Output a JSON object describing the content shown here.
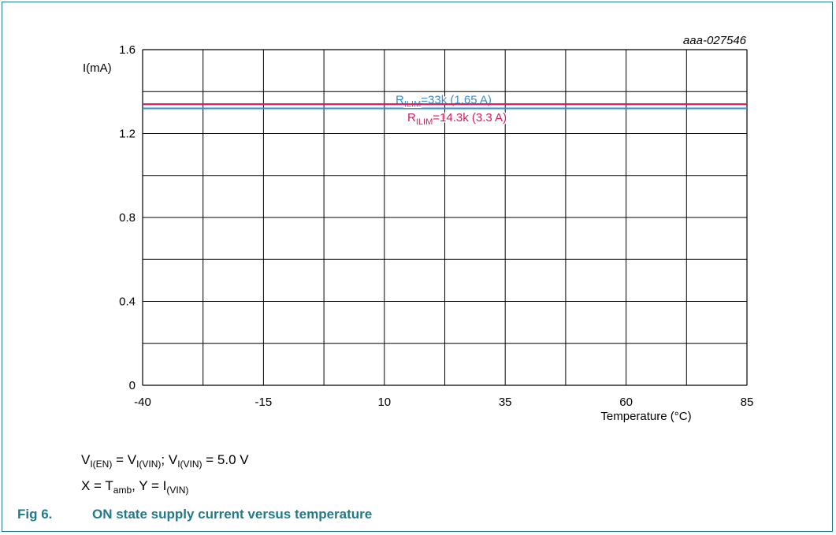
{
  "chart_data": {
    "type": "line",
    "ref_id": "aaa-027546",
    "ylabel": "I(mA)",
    "xlabel": "Temperature (°C)",
    "xlim": [
      -40,
      85
    ],
    "ylim": [
      0,
      1.6
    ],
    "x_ticks": [
      "-40",
      "-15",
      "10",
      "35",
      "60",
      "85"
    ],
    "x_tick_values": [
      -40,
      -15,
      10,
      35,
      60,
      85
    ],
    "y_ticks": [
      "0",
      "0.4",
      "0.8",
      "1.2",
      "1.6"
    ],
    "y_tick_values": [
      0,
      0.4,
      0.8,
      1.2,
      1.6
    ],
    "grid": true,
    "series": [
      {
        "name": "R_ILIM=33k (1.65 A)",
        "label_sub": "ILIM",
        "label_rest": "=33k (1.65 A)",
        "color": "#3a8fcf",
        "x": [
          -40,
          85
        ],
        "y": [
          1.32,
          1.32
        ]
      },
      {
        "name": "R_ILIM=14.3k (3.3 A)",
        "label_sub": "ILIM",
        "label_rest": "=14.3k (3.3 A)",
        "color": "#d81b60",
        "x": [
          -40,
          85
        ],
        "y": [
          1.34,
          1.34
        ]
      }
    ]
  },
  "conditions": {
    "line1": {
      "v1": "V",
      "v1_sub": "I(EN)",
      "eq1": " = ",
      "v2": "V",
      "v2_sub": "I(VIN)",
      "sep": "; ",
      "v3": "V",
      "v3_sub": "I(VIN)",
      "val": " = 5.0 V"
    },
    "line2": {
      "x": "X = T",
      "x_sub": "amb",
      "mid": ", Y = I",
      "y_sub": "(VIN)"
    }
  },
  "caption": {
    "number": "Fig 6.",
    "text": "ON state supply current versus temperature"
  },
  "colors": {
    "frame": "#1f7a8c",
    "caption": "#1f7a8c"
  }
}
